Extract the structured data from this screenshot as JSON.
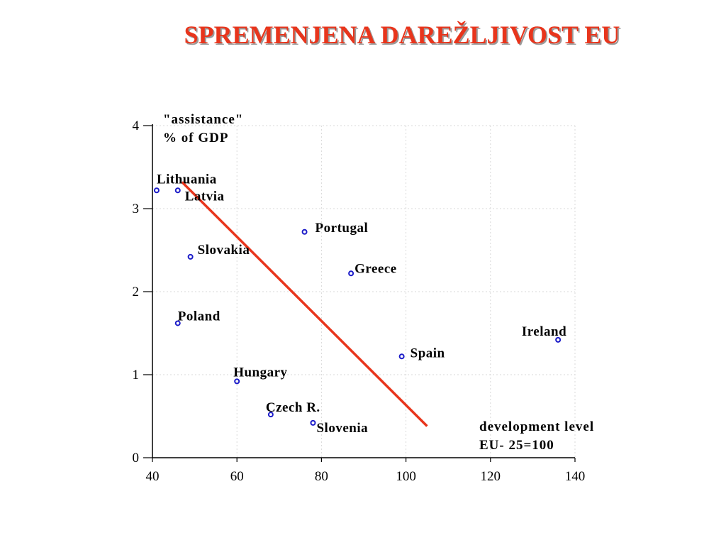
{
  "slide": {
    "title": "SPREMENJENA DAREŽLJIVOST EU"
  },
  "chart_data": {
    "type": "scatter",
    "ylabel_lines": [
      "\"assistance\"",
      "%  of GDP"
    ],
    "xlabel_lines": [
      "development level",
      "EU- 25=100"
    ],
    "xlim": [
      40,
      140
    ],
    "ylim": [
      0,
      4
    ],
    "x_ticks": [
      40,
      60,
      80,
      100,
      120,
      140
    ],
    "y_ticks": [
      0,
      1,
      2,
      3,
      4
    ],
    "grid": true,
    "points": [
      {
        "label": "Lithuania",
        "x": 41,
        "y": 3.22
      },
      {
        "label": "Latvia",
        "x": 46,
        "y": 3.22
      },
      {
        "label": "Portugal",
        "x": 76,
        "y": 2.72
      },
      {
        "label": "Slovakia",
        "x": 49,
        "y": 2.42
      },
      {
        "label": "Greece",
        "x": 87,
        "y": 2.22
      },
      {
        "label": "Poland",
        "x": 46,
        "y": 1.62
      },
      {
        "label": "Ireland",
        "x": 136,
        "y": 1.42
      },
      {
        "label": "Spain",
        "x": 99,
        "y": 1.22
      },
      {
        "label": "Hungary",
        "x": 60,
        "y": 0.92
      },
      {
        "label": "Czech R.",
        "x": 68,
        "y": 0.52
      },
      {
        "label": "Slovenia",
        "x": 78,
        "y": 0.42
      }
    ],
    "trend_line": {
      "x": [
        47,
        105
      ],
      "y": [
        3.32,
        0.38
      ]
    },
    "colors": {
      "points": "#1a1ac8",
      "trend": "#e8351c",
      "grid": "#d9d9d9"
    }
  }
}
